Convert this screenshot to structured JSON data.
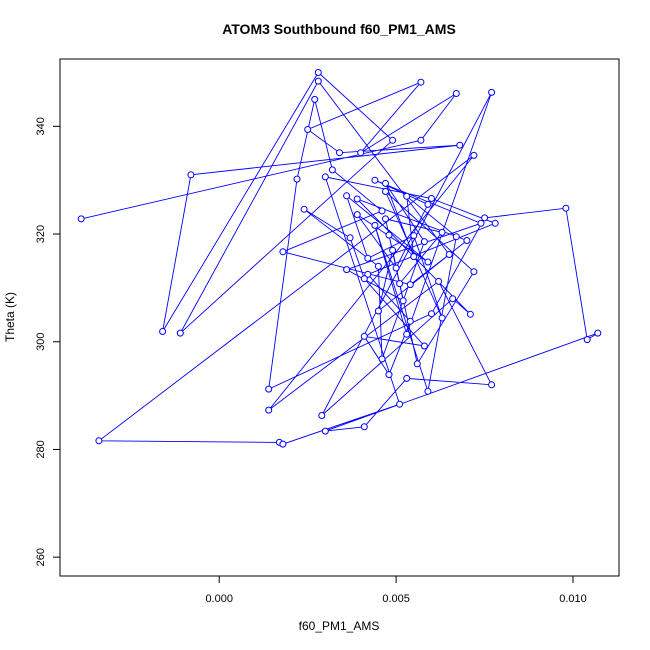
{
  "chart_data": {
    "type": "scatter",
    "title": "ATOM3 Southbound f60_PM1_AMS",
    "xlabel": "f60_PM1_AMS",
    "ylabel": "Theta (K)",
    "xlim": [
      -0.0045,
      0.0113
    ],
    "ylim": [
      256.5,
      352.5
    ],
    "xticks": [
      0.0,
      0.005,
      0.01
    ],
    "xtick_labels": [
      "0.000",
      "0.005",
      "0.010"
    ],
    "yticks": [
      260,
      280,
      300,
      320,
      340
    ],
    "ytick_labels": [
      "260",
      "280",
      "300",
      "320",
      "340"
    ],
    "grid": false,
    "legend": "none",
    "connected": true,
    "marker": "open-circle",
    "color": "#0000ff",
    "x": [
      -0.0039,
      0.0057,
      0.0067,
      0.004,
      0.0057,
      0.0025,
      0.0034,
      0.0068,
      -0.0008,
      -0.0016,
      0.0028,
      0.0049,
      -0.0011,
      0.0028,
      0.0065,
      0.0054,
      0.0018,
      0.0046,
      0.0032,
      0.0027,
      0.0022,
      0.0014,
      0.006,
      0.0075,
      0.0098,
      0.0104,
      0.0107,
      0.003,
      0.0041,
      0.0053,
      0.0077,
      0.0062,
      0.0014,
      0.0072,
      -0.0034,
      0.0017,
      0.0018,
      0.0051,
      0.003,
      0.006,
      0.0078,
      0.0042,
      0.0054,
      0.0048,
      0.0041,
      0.0058,
      0.0041,
      0.0037,
      0.0024,
      0.0045,
      0.0046,
      0.0058,
      0.0047,
      0.0055,
      0.0053,
      0.0067,
      0.0059,
      0.0044,
      0.0053,
      0.0077,
      0.0029,
      0.0066,
      0.0071,
      0.0039,
      0.007,
      0.0045,
      0.0049,
      0.0051,
      0.0063,
      0.0047,
      0.0056,
      0.0072,
      0.0047,
      0.0063,
      0.0055,
      0.0042,
      0.0036,
      0.0059,
      0.0039,
      0.005,
      0.0059,
      0.0044,
      0.0074,
      0.0036,
      0.0052,
      0.0048
    ],
    "y": [
      322.8,
      337.4,
      346.1,
      335.1,
      348.2,
      339.4,
      335.1,
      336.5,
      331.0,
      301.9,
      350.0,
      337.4,
      301.6,
      348.4,
      316.2,
      310.6,
      316.7,
      324.3,
      331.9,
      345.0,
      330.2,
      291.2,
      305.2,
      323.0,
      324.8,
      300.4,
      301.6,
      283.4,
      284.2,
      293.2,
      292.0,
      311.2,
      287.3,
      334.6,
      281.6,
      281.3,
      281.0,
      288.4,
      330.6,
      326.6,
      322.0,
      312.5,
      303.8,
      293.9,
      301.0,
      299.2,
      311.7,
      319.3,
      324.6,
      314.0,
      296.8,
      318.6,
      329.4,
      315.8,
      327.0,
      319.5,
      290.8,
      321.6,
      301.4,
      346.3,
      286.3,
      308.0,
      305.1,
      326.5,
      318.8,
      305.7,
      317.0,
      310.8,
      320.3,
      322.8,
      295.9,
      313.0,
      327.9,
      304.4,
      319.7,
      315.5,
      327.1,
      314.8,
      323.6,
      313.7,
      325.5,
      330.0,
      322.0,
      313.4,
      307.6,
      319.8
    ]
  }
}
